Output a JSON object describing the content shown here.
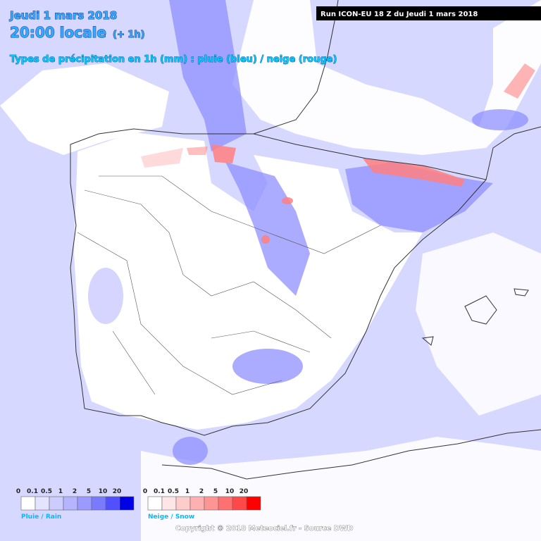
{
  "header": {
    "date": "Jeudi 1 mars 2018",
    "time": "20:00 locale",
    "offset": "(+ 1h)",
    "subtitle": "Types de précipitation en 1h (mm) : pluie (bleu) / neige (rouge)",
    "run": "Run ICON-EU 18 Z du Jeudi 1 mars 2018"
  },
  "legend": {
    "rain": {
      "ticks": [
        "0",
        "0.1",
        "0.5",
        "1",
        "2",
        "5",
        "10",
        "20"
      ],
      "colors": [
        "#ffffff",
        "#e4e4ff",
        "#ccccff",
        "#b4b4ff",
        "#9a9aff",
        "#7a7aff",
        "#5050ff",
        "#0000e6"
      ],
      "label": "Pluie / Rain"
    },
    "snow": {
      "ticks": [
        "0",
        "0.1",
        "0.5",
        "1",
        "2",
        "5",
        "10",
        "20"
      ],
      "colors": [
        "#ffffff",
        "#ffe6e6",
        "#ffcccc",
        "#ffb0b0",
        "#ff9494",
        "#ff7070",
        "#ff4848",
        "#ff0000"
      ],
      "label": "Neige / Snow"
    }
  },
  "footer": "Copyright © 2018 Meteociel.fr - Source DWD"
}
